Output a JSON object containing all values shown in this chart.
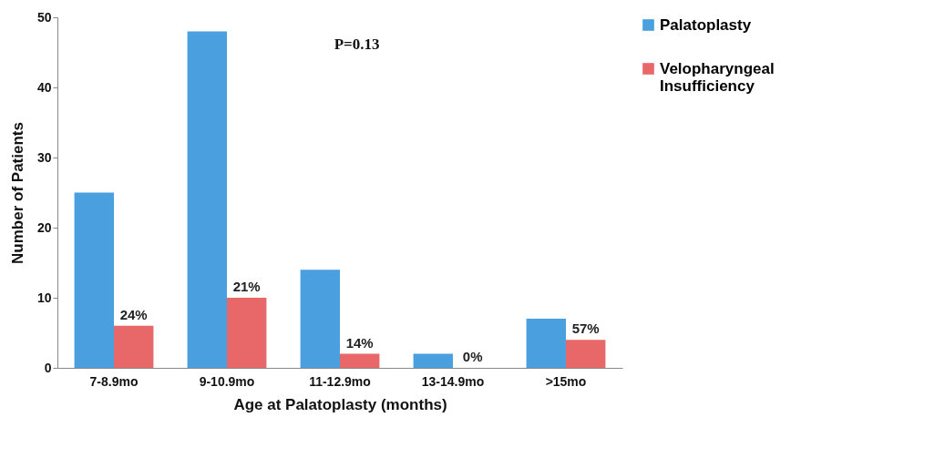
{
  "chart_data": {
    "type": "bar",
    "xlabel": "Age at Palatoplasty (months)",
    "ylabel": "Number of Patients",
    "categories": [
      "7-8.9mo",
      "9-10.9mo",
      "11-12.9mo",
      "13-14.9mo",
      ">15mo"
    ],
    "series": [
      {
        "name": "Palatoplasty",
        "color": "#4a9fde",
        "values": [
          25,
          48,
          14,
          2,
          7
        ]
      },
      {
        "name": "Velopharyngeal Insufficiency",
        "color": "#e8686a",
        "values": [
          6,
          10,
          2,
          0,
          4
        ]
      }
    ],
    "ylim": [
      0,
      50
    ],
    "yticks": [
      0,
      10,
      20,
      30,
      40,
      50
    ],
    "grid": false,
    "legend": "right",
    "annotations": [
      "P=0.13",
      {
        "text": "24%",
        "x": "7-8.9mo",
        "y": 6
      },
      {
        "text": "21%",
        "x": "9-10.9mo",
        "y": 10
      },
      {
        "text": "14%",
        "x": "11-12.9mo",
        "y": 2
      },
      {
        "text": "0%",
        "x": "13-14.9mo",
        "y": 0
      },
      {
        "text": "57%",
        "x": ">15mo",
        "y": 4
      }
    ]
  }
}
